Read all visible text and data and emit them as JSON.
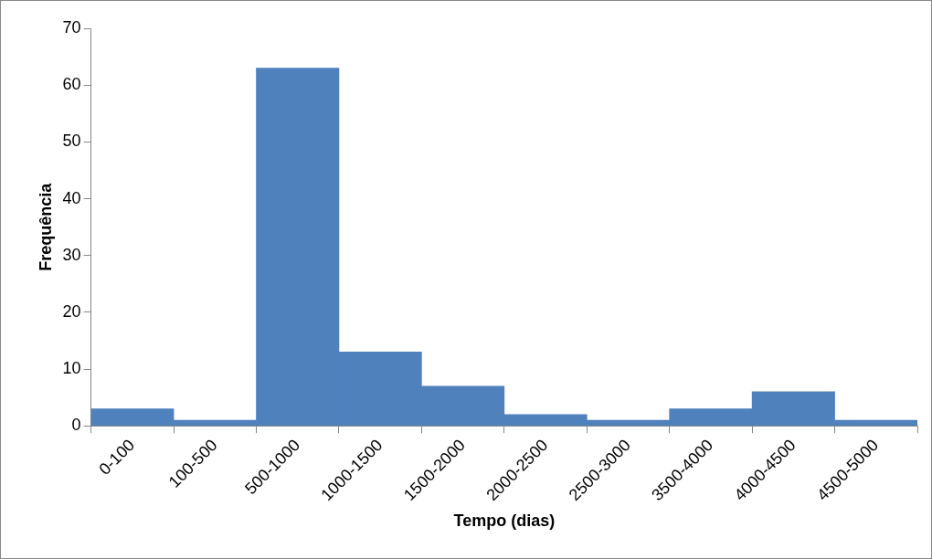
{
  "chart_data": {
    "type": "bar",
    "xlabel": "Tempo (dias)",
    "ylabel": "Frequência",
    "categories": [
      "0-100",
      "100-500",
      "500-1000",
      "1000-1500",
      "1500-2000",
      "2000-2500",
      "2500-3000",
      "3500-4000",
      "4000-4500",
      "4500-5000"
    ],
    "values": [
      3,
      1,
      63,
      13,
      7,
      2,
      1,
      3,
      6,
      1
    ],
    "color": "#4f81bd",
    "ylim": [
      0,
      70
    ],
    "yticks": [
      0,
      10,
      20,
      30,
      40,
      50,
      60,
      70
    ]
  }
}
